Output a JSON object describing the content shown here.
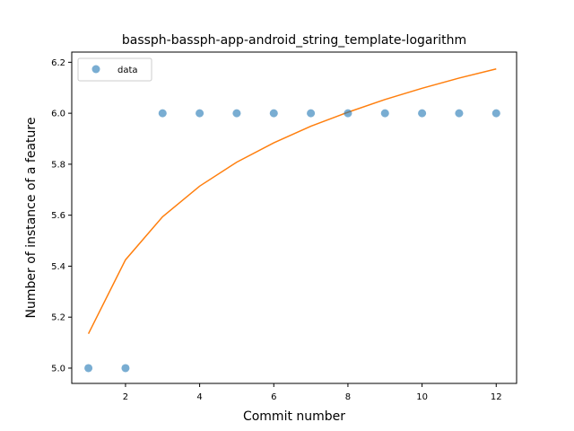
{
  "chart_data": {
    "type": "scatter",
    "title": "bassph-bassph-app-android_string_template-logarithm",
    "xlabel": "Commit number",
    "ylabel": "Number of instance of a feature",
    "xlim": [
      0.55,
      12.55
    ],
    "ylim": [
      4.94,
      6.24
    ],
    "x_ticks": [
      2,
      4,
      6,
      8,
      10,
      12
    ],
    "y_ticks": [
      5.0,
      5.2,
      5.4,
      5.6,
      5.8,
      6.0,
      6.2
    ],
    "x_tick_labels": [
      "2",
      "4",
      "6",
      "8",
      "10",
      "12"
    ],
    "y_tick_labels": [
      "5.0",
      "5.2",
      "5.4",
      "5.6",
      "5.8",
      "6.0",
      "6.2"
    ],
    "grid": false,
    "legend_position": "upper-left",
    "series": [
      {
        "name": "data",
        "kind": "scatter",
        "color": "#1f77b4",
        "x": [
          1,
          2,
          3,
          4,
          5,
          6,
          7,
          8,
          9,
          10,
          11,
          12
        ],
        "y": [
          5,
          5,
          6,
          6,
          6,
          6,
          6,
          6,
          6,
          6,
          6,
          6
        ]
      },
      {
        "kind": "line",
        "color": "#ff7f0e",
        "x": [
          1,
          2,
          3,
          4,
          5,
          6,
          7,
          8,
          9,
          10,
          11,
          12
        ],
        "y": [
          5.135,
          5.425,
          5.594,
          5.714,
          5.808,
          5.884,
          5.949,
          6.004,
          6.054,
          6.098,
          6.138,
          6.174
        ]
      }
    ]
  }
}
